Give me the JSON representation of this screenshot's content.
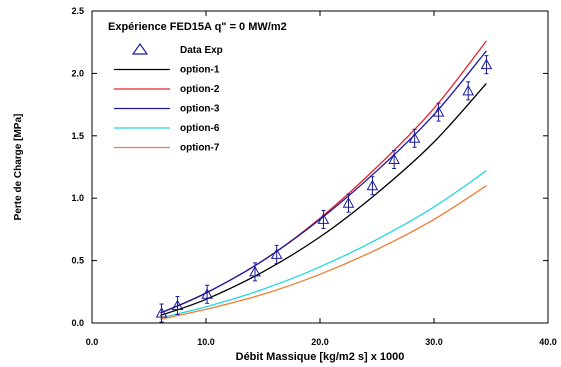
{
  "chart_data": {
    "type": "line",
    "title": "Expérience FED15A q\" = 0 MW/m2",
    "xlabel": "Débit Massique [kg/m2 s] x 1000",
    "ylabel": "Perte de Charge [MPa]",
    "xlim": [
      0,
      40
    ],
    "ylim": [
      0,
      2.5
    ],
    "xticks": [
      "0.0",
      "10.0",
      "20.0",
      "30.0",
      "40.0"
    ],
    "yticks": [
      "0.0",
      "0.5",
      "1.0",
      "1.5",
      "2.0",
      "2.5"
    ],
    "grid": false,
    "legend_position": "top-left",
    "scatter": {
      "name": "Data Exp",
      "marker": "triangle",
      "color": "#1c1c9c",
      "points": [
        {
          "x": 6.1,
          "y": 0.08
        },
        {
          "x": 7.5,
          "y": 0.14
        },
        {
          "x": 10.1,
          "y": 0.23
        },
        {
          "x": 14.3,
          "y": 0.41
        },
        {
          "x": 16.2,
          "y": 0.55
        },
        {
          "x": 20.3,
          "y": 0.83
        },
        {
          "x": 22.5,
          "y": 0.96
        },
        {
          "x": 24.6,
          "y": 1.1
        },
        {
          "x": 26.5,
          "y": 1.31
        },
        {
          "x": 28.3,
          "y": 1.48
        },
        {
          "x": 30.4,
          "y": 1.69
        },
        {
          "x": 33.0,
          "y": 1.86
        },
        {
          "x": 34.6,
          "y": 2.07
        }
      ]
    },
    "series": [
      {
        "name": "option-1",
        "color": "#000000",
        "x": [
          6,
          10,
          15,
          20,
          25,
          30,
          34.6
        ],
        "y": [
          0.06,
          0.19,
          0.41,
          0.69,
          1.04,
          1.45,
          1.92
        ]
      },
      {
        "name": "option-2",
        "color": "#e8202a",
        "x": [
          6,
          10,
          15,
          20,
          25,
          30,
          34.6
        ],
        "y": [
          0.08,
          0.24,
          0.5,
          0.84,
          1.25,
          1.72,
          2.26
        ]
      },
      {
        "name": "option-3",
        "color": "#1a1aa6",
        "x": [
          6,
          10,
          15,
          20,
          25,
          30,
          34.6
        ],
        "y": [
          0.08,
          0.24,
          0.5,
          0.83,
          1.22,
          1.67,
          2.18
        ]
      },
      {
        "name": "option-6",
        "color": "#22d8e0",
        "x": [
          6,
          10,
          15,
          20,
          25,
          30,
          34.6
        ],
        "y": [
          0.04,
          0.13,
          0.27,
          0.45,
          0.67,
          0.93,
          1.22
        ]
      },
      {
        "name": "option-7",
        "color": "#f07d32",
        "x": [
          6,
          10,
          15,
          20,
          25,
          30,
          34.6
        ],
        "y": [
          0.03,
          0.11,
          0.23,
          0.39,
          0.59,
          0.83,
          1.1
        ]
      }
    ]
  }
}
